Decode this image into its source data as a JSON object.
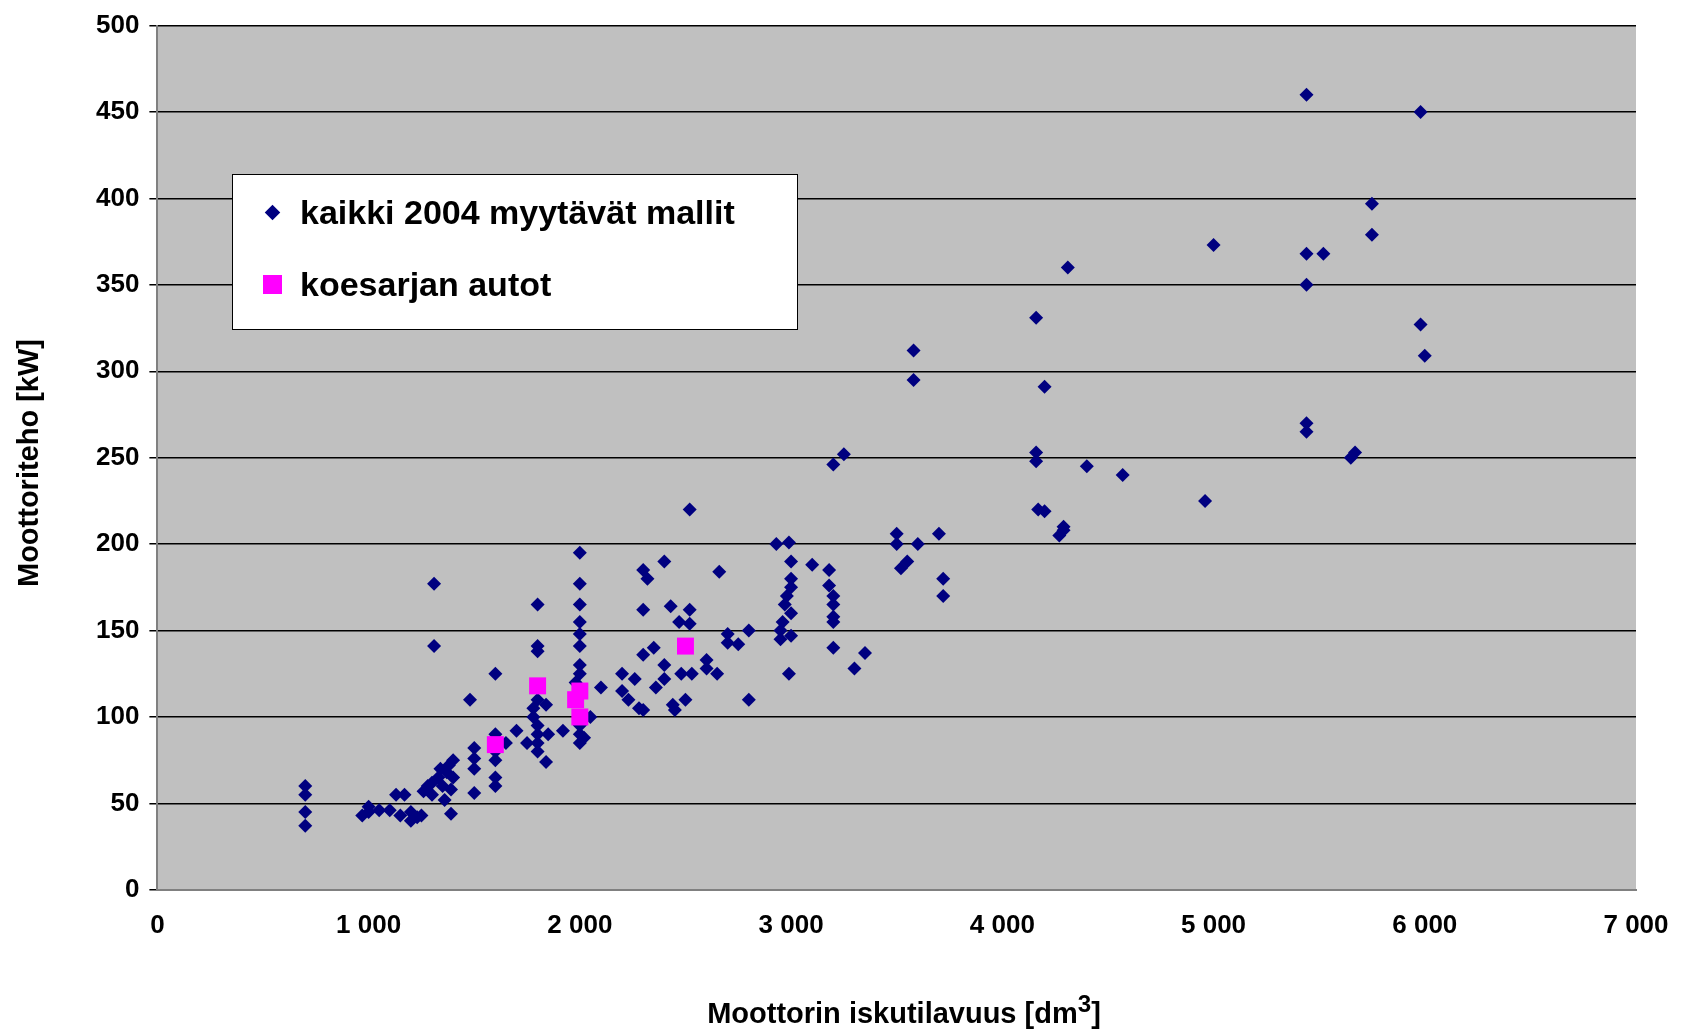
{
  "chart_data": {
    "type": "scatter",
    "xlabel": "Moottorin iskutilavuus [dm$^{3}$]",
    "ylabel": "Moottoriteho [kW]",
    "xlim": [
      0,
      7000
    ],
    "xticks": [
      0,
      {
        "value": 1000,
        "label": "1 000"
      },
      {
        "value": 2000,
        "label": "2 000"
      },
      {
        "value": 3000,
        "label": "3 000"
      },
      {
        "value": 4000,
        "label": "4 000"
      },
      {
        "value": 5000,
        "label": "5 000"
      },
      {
        "value": 6000,
        "label": "6 000"
      },
      {
        "value": 7000,
        "label": "7 000"
      }
    ],
    "ylim": [
      0,
      500
    ],
    "yticks": [
      0,
      50,
      100,
      150,
      200,
      250,
      300,
      350,
      400,
      450,
      500
    ],
    "grid": "y",
    "legend": "top left",
    "series": [
      {
        "name": "kaikki 2004 myytävät mallit",
        "color": "#000080",
        "marker": "diamond",
        "x": [
          700,
          700,
          700,
          700,
          970,
          1000,
          1000,
          1050,
          1100,
          1130,
          1150,
          1170,
          1200,
          1200,
          1230,
          1250,
          1260,
          1280,
          1300,
          1300,
          1310,
          1310,
          1330,
          1340,
          1350,
          1360,
          1370,
          1380,
          1390,
          1390,
          1400,
          1400,
          1480,
          1500,
          1500,
          1500,
          1500,
          1600,
          1600,
          1600,
          1600,
          1600,
          1600,
          1650,
          1700,
          1750,
          1780,
          1780,
          1800,
          1800,
          1800,
          1800,
          1800,
          1800,
          1800,
          1800,
          1840,
          1840,
          1850,
          1920,
          1980,
          2000,
          2000,
          2000,
          2000,
          2000,
          2000,
          2000,
          2000,
          2000,
          2000,
          2000,
          2020,
          2050,
          2100,
          2200,
          2200,
          2230,
          2260,
          2280,
          2300,
          2300,
          2300,
          2300,
          2320,
          2350,
          2360,
          2400,
          2400,
          2400,
          2430,
          2440,
          2450,
          2470,
          2480,
          2500,
          2520,
          2520,
          2520,
          2530,
          2600,
          2600,
          2650,
          2660,
          2700,
          2700,
          2750,
          2800,
          2800,
          2930,
          2950,
          2950,
          2960,
          2970,
          2980,
          2990,
          2990,
          3000,
          3000,
          3000,
          3000,
          3000,
          3100,
          3180,
          3180,
          3200,
          3200,
          3200,
          3200,
          3200,
          3200,
          3250,
          3300,
          3350,
          3500,
          3500,
          3520,
          3550,
          3580,
          3580,
          3600,
          3700,
          3720,
          3720,
          4160,
          4160,
          4160,
          4170,
          4200,
          4200,
          4270,
          4290,
          4290,
          4310,
          4400,
          4570,
          4960,
          5000,
          5440,
          5440,
          5440,
          5440,
          5440,
          5520,
          5650,
          5670,
          5750,
          5750,
          5980,
          5980,
          6000
        ],
        "values": [
          60,
          55,
          45,
          37,
          43,
          45,
          48,
          46,
          46,
          55,
          43,
          55,
          40,
          45,
          42,
          43,
          57,
          60,
          55,
          62,
          177,
          141,
          65,
          70,
          60,
          52,
          68,
          72,
          44,
          58,
          75,
          65,
          110,
          56,
          70,
          76,
          82,
          125,
          90,
          80,
          75,
          65,
          60,
          85,
          92,
          85,
          100,
          105,
          165,
          141,
          138,
          110,
          95,
          90,
          85,
          80,
          107,
          74,
          90,
          92,
          120,
          195,
          177,
          165,
          155,
          148,
          141,
          130,
          125,
          95,
          85,
          90,
          88,
          100,
          117,
          125,
          115,
          110,
          122,
          105,
          185,
          162,
          136,
          104,
          180,
          140,
          117,
          190,
          130,
          122,
          164,
          107,
          104,
          155,
          125,
          110,
          220,
          162,
          154,
          125,
          133,
          128,
          125,
          184,
          148,
          143,
          142,
          150,
          110,
          200,
          145,
          150,
          155,
          165,
          170,
          125,
          201,
          190,
          175,
          180,
          160,
          147,
          188,
          185,
          176,
          170,
          165,
          158,
          155,
          140,
          246,
          252,
          128,
          137,
          206,
          200,
          186,
          190,
          312,
          295,
          200,
          206,
          180,
          170,
          331,
          253,
          248,
          220,
          291,
          219,
          205,
          210,
          208,
          360,
          245,
          240,
          225,
          373,
          460,
          368,
          350,
          270,
          265,
          368,
          250,
          253,
          397,
          379,
          450,
          327,
          309
        ]
      },
      {
        "name": "koesarjan autot",
        "color": "#ff00ff",
        "marker": "square",
        "x": [
          1600,
          1800,
          1980,
          2000,
          2000,
          2500
        ],
        "values": [
          84,
          118,
          110,
          115,
          100,
          141
        ]
      }
    ]
  }
}
